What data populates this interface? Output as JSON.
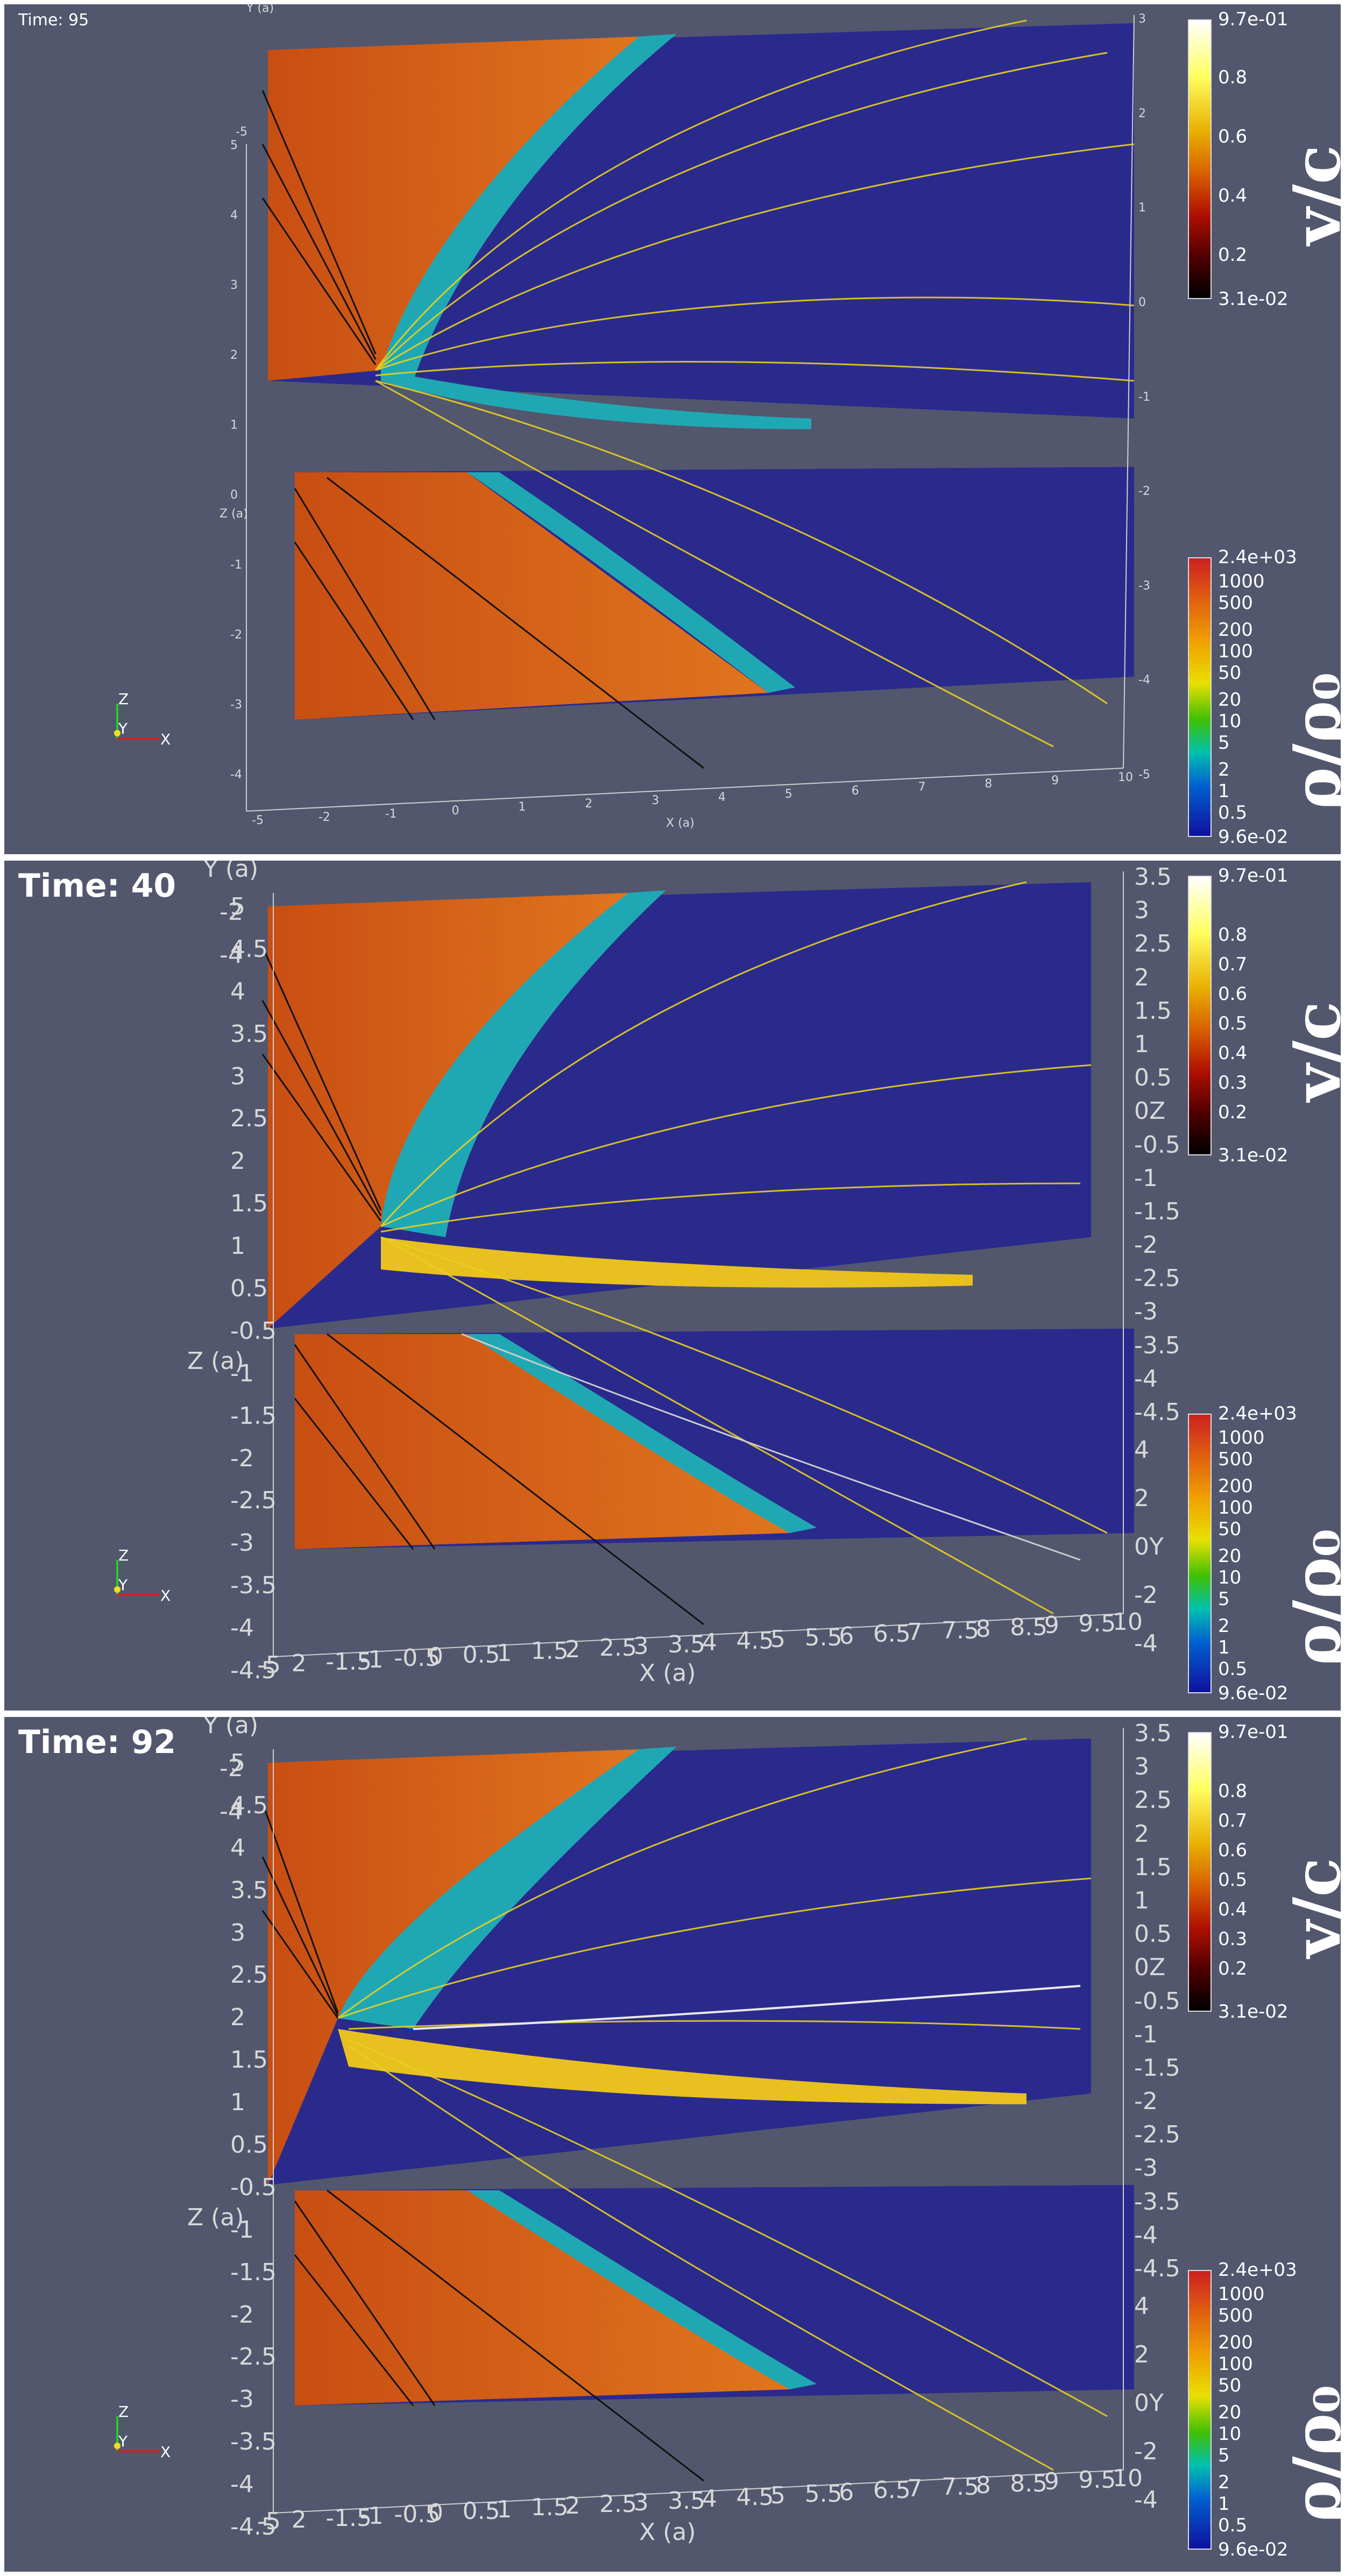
{
  "panels": [
    {
      "time_label": "Time: 95",
      "x_axis_title": "X (a)",
      "y_axis_title": "Y (a)",
      "z_axis_title": "Z (a)",
      "x_ticks": [
        "-5",
        "-2",
        "-1",
        "0",
        "1",
        "2",
        "3",
        "4",
        "5",
        "6",
        "7",
        "8",
        "9",
        "10"
      ],
      "z_ticks": [
        "5",
        "4",
        "3",
        "2",
        "1",
        "0",
        "-1",
        "-2",
        "-3",
        "-4"
      ],
      "y_ticks_right": [
        "3",
        "2",
        "1",
        "0",
        "-1",
        "-2",
        "-3",
        "-4",
        "-5"
      ],
      "y_ticks_left": [
        "-5"
      ]
    },
    {
      "time_label": "Time: 40",
      "x_axis_title": "X (a)",
      "y_axis_title": "Y (a)",
      "z_axis_title": "Z (a)",
      "x_ticks": [
        "-5",
        "2",
        "-1.5",
        "-1",
        "-0.5",
        "0",
        "0.5",
        "1",
        "1.5",
        "2",
        "2.5",
        "3",
        "3.5",
        "4",
        "4.5",
        "5",
        "5.5",
        "6",
        "6.5",
        "7",
        "7.5",
        "8",
        "8.5",
        "9",
        "9.5",
        "10"
      ],
      "z_ticks": [
        "5",
        "4.5",
        "4",
        "3.5",
        "3",
        "2.5",
        "2",
        "1.5",
        "1",
        "0.5",
        "-0.5",
        "-1",
        "-1.5",
        "-2",
        "-2.5",
        "-3",
        "-3.5",
        "-4",
        "-4.5"
      ],
      "y_ticks_right": [
        "3.5",
        "3",
        "2.5",
        "2",
        "1.5",
        "1",
        "0.5",
        "0Z",
        "-0.5",
        "-1",
        "-1.5",
        "-2",
        "-2.5",
        "-3",
        "-3.5",
        "-4",
        "-4.5"
      ],
      "y_ticks_right2": [
        "4",
        "2",
        "0Y",
        "-2",
        "-4"
      ],
      "y_ticks_left": [
        "-2",
        "-4"
      ]
    },
    {
      "time_label": "Time: 92",
      "x_axis_title": "X (a)",
      "y_axis_title": "Y (a)",
      "z_axis_title": "Z (a)",
      "x_ticks": [
        "-5",
        "2",
        "-1.5",
        "-1",
        "-0.5",
        "0",
        "0.5",
        "1",
        "1.5",
        "2",
        "2.5",
        "3",
        "3.5",
        "4",
        "4.5",
        "5",
        "5.5",
        "6",
        "6.5",
        "7",
        "7.5",
        "8",
        "8.5",
        "9",
        "9.5",
        "10"
      ],
      "z_ticks": [
        "5",
        "4.5",
        "4",
        "3.5",
        "3",
        "2.5",
        "2",
        "1.5",
        "1",
        "0.5",
        "-0.5",
        "-1",
        "-1.5",
        "-2",
        "-2.5",
        "-3",
        "-3.5",
        "-4",
        "-4.5"
      ],
      "y_ticks_right": [
        "3.5",
        "3",
        "2.5",
        "2",
        "1.5",
        "1",
        "0.5",
        "0Z",
        "-0.5",
        "-1",
        "-1.5",
        "-2",
        "-2.5",
        "-3",
        "-3.5",
        "-4",
        "-4.5"
      ],
      "y_ticks_right2": [
        "4",
        "2",
        "0Y",
        "-2",
        "-4"
      ],
      "y_ticks_left": [
        "-2",
        "-4"
      ]
    }
  ],
  "velocity_colorbar": {
    "title": "v/c",
    "max_label": "9.7e-01",
    "min_label": "3.1e-02",
    "ticks_small": [
      "0.8",
      "0.6",
      "0.4",
      "0.2"
    ],
    "ticks_large": [
      "0.8",
      "0.7",
      "0.6",
      "0.5",
      "0.4",
      "0.3",
      "0.2"
    ],
    "colors": [
      "#ffffff",
      "#ffff60",
      "#e8b000",
      "#d86000",
      "#b01000",
      "#500000",
      "#000000"
    ]
  },
  "density_colorbar": {
    "title": "ρ/ρ₀",
    "max_label": "2.4e+03",
    "min_label": "9.6e-02",
    "ticks": [
      "1000",
      "500",
      "200",
      "100",
      "50",
      "20",
      "10",
      "5",
      "2",
      "1",
      "0.5"
    ],
    "colors": [
      "#cc2020",
      "#e06010",
      "#f0a000",
      "#e8e000",
      "#40c000",
      "#00c0b0",
      "#0060d0",
      "#1010a0"
    ]
  },
  "orientation_triad": {
    "z": "Z",
    "y": "Y",
    "x": "X"
  },
  "colors": {
    "background": "#52576e",
    "upstream_plane": "#d2601a",
    "downstream_plane": "#2a2a8c",
    "shock_layer": "#20b0c0",
    "fieldline_yellow": "#e8d020",
    "fieldline_black": "#111111"
  }
}
